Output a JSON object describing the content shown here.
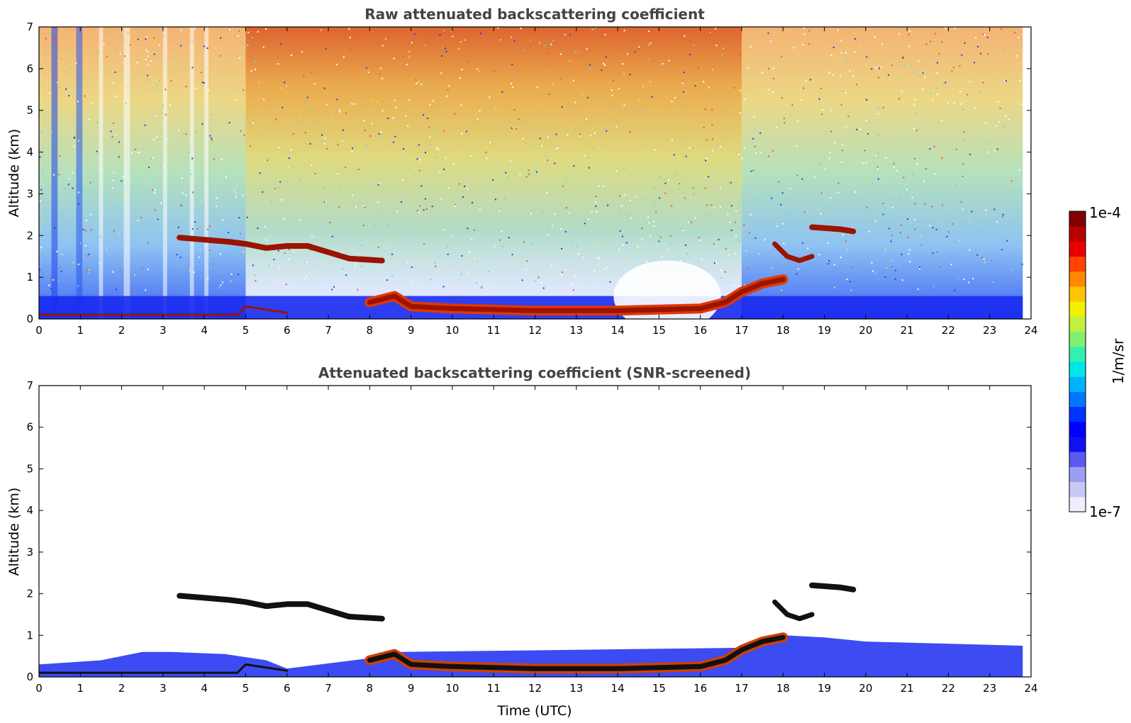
{
  "chart_data": [
    {
      "type": "heatmap",
      "title": "Raw attenuated backscattering coefficient",
      "xlabel": "",
      "ylabel": "Altitude (km)",
      "xlim": [
        0,
        24
      ],
      "ylim": [
        0,
        7
      ],
      "xticks": [
        "0",
        "1",
        "2",
        "3",
        "4",
        "5",
        "6",
        "7",
        "8",
        "9",
        "10",
        "11",
        "12",
        "13",
        "14",
        "15",
        "16",
        "17",
        "18",
        "19",
        "20",
        "21",
        "22",
        "23",
        "24"
      ],
      "yticks": [
        "0",
        "1",
        "2",
        "3",
        "4",
        "5",
        "6",
        "7"
      ],
      "grid": false,
      "features": {
        "surface_layer": [
          [
            0,
            0.1
          ],
          [
            4.8,
            0.1
          ],
          [
            5,
            0.3
          ],
          [
            6,
            0.15
          ],
          [
            8,
            0.4
          ],
          [
            8.6,
            0.55
          ],
          [
            9,
            0.3
          ],
          [
            10,
            0.25
          ],
          [
            12,
            0.2
          ],
          [
            14,
            0.2
          ],
          [
            16,
            0.25
          ],
          [
            16.6,
            0.4
          ],
          [
            17,
            0.65
          ],
          [
            17.5,
            0.85
          ],
          [
            18,
            0.95
          ]
        ],
        "cloud_layer_a": [
          [
            3.4,
            1.95
          ],
          [
            4.0,
            1.9
          ],
          [
            4.6,
            1.85
          ],
          [
            5.0,
            1.8
          ],
          [
            5.5,
            1.7
          ],
          [
            6.0,
            1.75
          ],
          [
            6.5,
            1.75
          ],
          [
            7.0,
            1.6
          ],
          [
            7.5,
            1.45
          ],
          [
            8.3,
            1.4
          ]
        ],
        "cloud_layer_b": [
          [
            17.8,
            1.8
          ],
          [
            18.1,
            1.5
          ],
          [
            18.4,
            1.4
          ],
          [
            18.7,
            1.5
          ]
        ],
        "cloud_layer_c": [
          [
            18.7,
            2.2
          ],
          [
            19.0,
            2.18
          ],
          [
            19.4,
            2.15
          ],
          [
            19.7,
            2.1
          ]
        ],
        "data_end_hour": 23.8
      }
    },
    {
      "type": "heatmap",
      "title": "Attenuated backscattering coefficient (SNR-screened)",
      "xlabel": "Time (UTC)",
      "ylabel": "Altitude (km)",
      "xlim": [
        0,
        24
      ],
      "ylim": [
        0,
        7
      ],
      "xticks": [
        "0",
        "1",
        "2",
        "3",
        "4",
        "5",
        "6",
        "7",
        "8",
        "9",
        "10",
        "11",
        "12",
        "13",
        "14",
        "15",
        "16",
        "17",
        "18",
        "19",
        "20",
        "21",
        "22",
        "23",
        "24"
      ],
      "yticks": [
        "0",
        "1",
        "2",
        "3",
        "4",
        "5",
        "6",
        "7"
      ],
      "grid": false,
      "features": {
        "surface_layer": [
          [
            0,
            0.1
          ],
          [
            4.8,
            0.1
          ],
          [
            5,
            0.3
          ],
          [
            6,
            0.15
          ],
          [
            8,
            0.4
          ],
          [
            8.6,
            0.55
          ],
          [
            9,
            0.3
          ],
          [
            10,
            0.25
          ],
          [
            12,
            0.2
          ],
          [
            14,
            0.2
          ],
          [
            16,
            0.25
          ],
          [
            16.6,
            0.4
          ],
          [
            17,
            0.65
          ],
          [
            17.5,
            0.85
          ],
          [
            18,
            0.95
          ]
        ],
        "cloud_layer_a": [
          [
            3.4,
            1.95
          ],
          [
            4.0,
            1.9
          ],
          [
            4.6,
            1.85
          ],
          [
            5.0,
            1.8
          ],
          [
            5.5,
            1.7
          ],
          [
            6.0,
            1.75
          ],
          [
            6.5,
            1.75
          ],
          [
            7.0,
            1.6
          ],
          [
            7.5,
            1.45
          ],
          [
            8.3,
            1.4
          ]
        ],
        "cloud_layer_b": [
          [
            17.8,
            1.8
          ],
          [
            18.1,
            1.5
          ],
          [
            18.4,
            1.4
          ],
          [
            18.7,
            1.5
          ]
        ],
        "cloud_layer_c": [
          [
            18.7,
            2.2
          ],
          [
            19.0,
            2.18
          ],
          [
            19.4,
            2.15
          ],
          [
            19.7,
            2.1
          ]
        ],
        "data_end_hour": 23.8
      }
    }
  ],
  "colorbar": {
    "max_label": "1e-4",
    "min_label": "1e-7",
    "label": "1/m/sr",
    "colors": [
      "#eeeefc",
      "#c8c8f6",
      "#9d9df4",
      "#5a5af0",
      "#1111ee",
      "#0000ff",
      "#0033ff",
      "#0077ff",
      "#00b3ff",
      "#00e5e8",
      "#33f0b0",
      "#80f070",
      "#c0f040",
      "#f0f000",
      "#ffc400",
      "#ff8800",
      "#ff4400",
      "#e80000",
      "#b80000",
      "#800000"
    ]
  }
}
